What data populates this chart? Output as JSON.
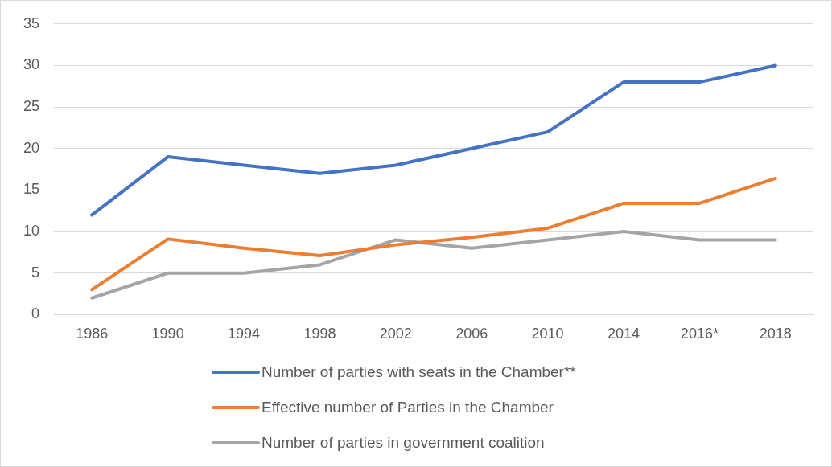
{
  "chart_data": {
    "type": "line",
    "categories": [
      "1986",
      "1990",
      "1994",
      "1998",
      "2002",
      "2006",
      "2010",
      "2014",
      "2016*",
      "2018"
    ],
    "series": [
      {
        "name": "Number of parties with seats in the Chamber**",
        "color": "#4472c4",
        "values": [
          12,
          19,
          18,
          17,
          18,
          20,
          22,
          28,
          28,
          30
        ]
      },
      {
        "name": "Effective number of Parties in the Chamber",
        "color": "#ed7d31",
        "values": [
          3.0,
          9.1,
          8.0,
          7.1,
          8.4,
          9.3,
          10.4,
          13.4,
          13.4,
          16.4
        ]
      },
      {
        "name": "Number of parties  in government coalition",
        "color": "#a5a5a5",
        "values": [
          2,
          5,
          5,
          6,
          9,
          8,
          9,
          10,
          9,
          9
        ]
      }
    ],
    "ylim": [
      0,
      35
    ],
    "yticks": [
      0,
      5,
      10,
      15,
      20,
      25,
      30,
      35
    ],
    "grid": "y",
    "legend": "bottom",
    "marker": "none",
    "line_style": "solid"
  }
}
